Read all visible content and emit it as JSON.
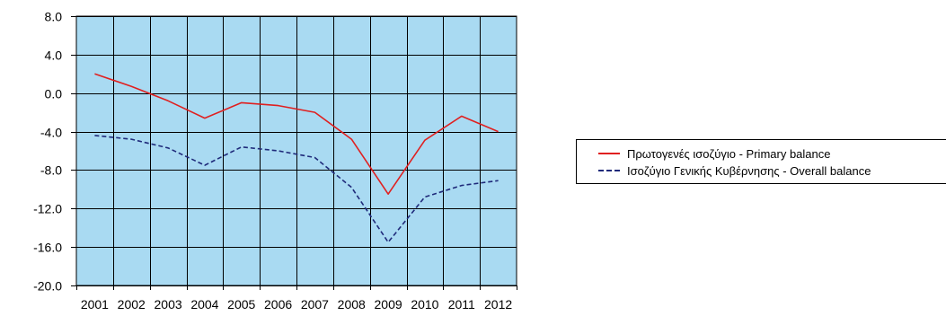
{
  "chart_data": {
    "type": "line",
    "x": [
      "2001",
      "2002",
      "2003",
      "2004",
      "2005",
      "2006",
      "2007",
      "2008",
      "2009",
      "2010",
      "2011",
      "2012"
    ],
    "ylim": [
      -20.0,
      8.0
    ],
    "yticks": [
      "8.0",
      "4.0",
      "0.0",
      "-4.0",
      "-8.0",
      "-12.0",
      "-16.0",
      "-20.0"
    ],
    "grid": true,
    "legend_position": "right",
    "plot_background": "#a9daf2",
    "series": [
      {
        "name": "Πρωτογενές ισοζύγιο - Primary balance",
        "color": "#e02020",
        "style": "solid",
        "values": [
          2.0,
          0.7,
          -0.8,
          -2.6,
          -1.0,
          -1.3,
          -2.0,
          -4.8,
          -10.5,
          -4.9,
          -2.4,
          -4.0
        ]
      },
      {
        "name": "Ισοζύγιο Γενικής Κυβέρνησης - Overall balance",
        "color": "#1f2a7a",
        "style": "dashed",
        "values": [
          -4.4,
          -4.8,
          -5.7,
          -7.5,
          -5.6,
          -6.0,
          -6.7,
          -9.8,
          -15.5,
          -10.8,
          -9.6,
          -9.1
        ]
      }
    ]
  }
}
